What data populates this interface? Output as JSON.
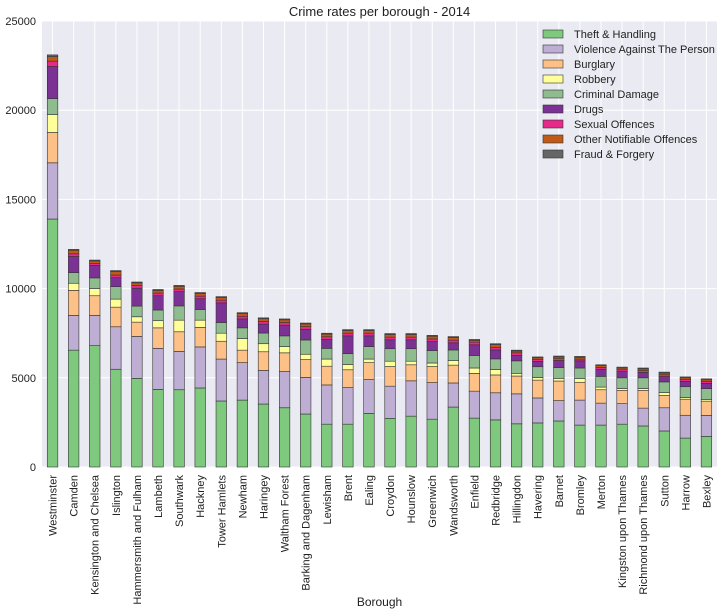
{
  "chart_data": {
    "type": "bar",
    "stacked": true,
    "title": "Crime rates per borough - 2014",
    "xlabel": "Borough",
    "ylabel": "",
    "ylim": [
      0,
      25000
    ],
    "yticks": [
      0,
      5000,
      10000,
      15000,
      20000,
      25000
    ],
    "grid": true,
    "legend_position": "top-right",
    "categories": [
      "Westminster",
      "Camden",
      "Kensington and Chelsea",
      "Islington",
      "Hammersmith and Fulham",
      "Lambeth",
      "Southwark",
      "Hackney",
      "Tower Hamlets",
      "Newham",
      "Haringey",
      "Waltham Forest",
      "Barking and Dagenham",
      "Lewisham",
      "Brent",
      "Ealing",
      "Croydon",
      "Hounslow",
      "Greenwich",
      "Wandsworth",
      "Enfield",
      "Redbridge",
      "Hillingdon",
      "Havering",
      "Barnet",
      "Bromley",
      "Merton",
      "Kingston upon Thames",
      "Richmond upon Thames",
      "Sutton",
      "Harrow",
      "Bexley"
    ],
    "series": [
      {
        "name": "Theft & Handling",
        "color": "#7fc97f",
        "values": [
          13900,
          6550,
          6800,
          5480,
          4970,
          4350,
          4330,
          4430,
          3700,
          3750,
          3530,
          3320,
          2970,
          2400,
          2400,
          3000,
          2730,
          2850,
          2680,
          3360,
          2740,
          2640,
          2420,
          2470,
          2580,
          2350,
          2350,
          2400,
          2300,
          2020,
          1620,
          1720
        ]
      },
      {
        "name": "Violence Against The Person",
        "color": "#beaed4",
        "values": [
          3150,
          1950,
          1700,
          2380,
          2350,
          2300,
          2150,
          2300,
          2350,
          2100,
          1880,
          2030,
          2050,
          2200,
          2050,
          1900,
          1800,
          1980,
          2050,
          1350,
          1510,
          1520,
          1680,
          1400,
          1140,
          1400,
          1230,
          1150,
          1000,
          1300,
          1280,
          1170
        ]
      },
      {
        "name": "Burglary",
        "color": "#fdc086",
        "values": [
          1700,
          1400,
          1100,
          1100,
          800,
          1150,
          1100,
          1100,
          1000,
          700,
          1050,
          1050,
          1000,
          1050,
          1000,
          950,
          1100,
          900,
          900,
          1000,
          1000,
          1000,
          1000,
          1000,
          1100,
          1000,
          750,
          750,
          1000,
          700,
          900,
          800
        ]
      },
      {
        "name": "Robbery",
        "color": "#ffff99",
        "values": [
          1000,
          400,
          400,
          450,
          300,
          400,
          650,
          400,
          450,
          650,
          450,
          350,
          300,
          400,
          300,
          200,
          300,
          200,
          200,
          250,
          300,
          300,
          150,
          150,
          150,
          200,
          150,
          100,
          100,
          150,
          100,
          100
        ]
      },
      {
        "name": "Criminal Damage",
        "color": "#8fbc8f",
        "values": [
          900,
          600,
          600,
          700,
          600,
          600,
          800,
          600,
          600,
          600,
          600,
          600,
          800,
          600,
          600,
          700,
          700,
          700,
          700,
          600,
          700,
          600,
          700,
          600,
          600,
          600,
          600,
          600,
          600,
          600,
          600,
          600
        ]
      },
      {
        "name": "Drugs",
        "color": "#7b3294",
        "values": [
          1800,
          900,
          700,
          500,
          1000,
          800,
          800,
          600,
          1100,
          500,
          500,
          600,
          600,
          500,
          1000,
          600,
          500,
          500,
          500,
          400,
          600,
          500,
          300,
          300,
          400,
          400,
          400,
          350,
          300,
          300,
          300,
          300
        ]
      },
      {
        "name": "Sexual Offences",
        "color": "#e7298a",
        "values": [
          300,
          150,
          100,
          150,
          150,
          150,
          150,
          150,
          150,
          150,
          150,
          150,
          150,
          150,
          150,
          150,
          150,
          150,
          150,
          150,
          150,
          150,
          150,
          100,
          100,
          100,
          100,
          100,
          100,
          100,
          100,
          100
        ]
      },
      {
        "name": "Other Notifiable Offences",
        "color": "#bf5b17",
        "values": [
          250,
          200,
          150,
          200,
          150,
          150,
          150,
          150,
          150,
          150,
          150,
          150,
          150,
          150,
          150,
          150,
          150,
          150,
          150,
          150,
          100,
          150,
          100,
          100,
          100,
          100,
          100,
          100,
          100,
          100,
          100,
          100
        ]
      },
      {
        "name": "Fraud & Forgery",
        "color": "#666666",
        "values": [
          100,
          50,
          50,
          50,
          50,
          50,
          50,
          50,
          50,
          50,
          50,
          50,
          50,
          50,
          50,
          50,
          50,
          50,
          50,
          50,
          50,
          50,
          50,
          50,
          50,
          50,
          50,
          50,
          50,
          50,
          50,
          50
        ]
      }
    ]
  }
}
